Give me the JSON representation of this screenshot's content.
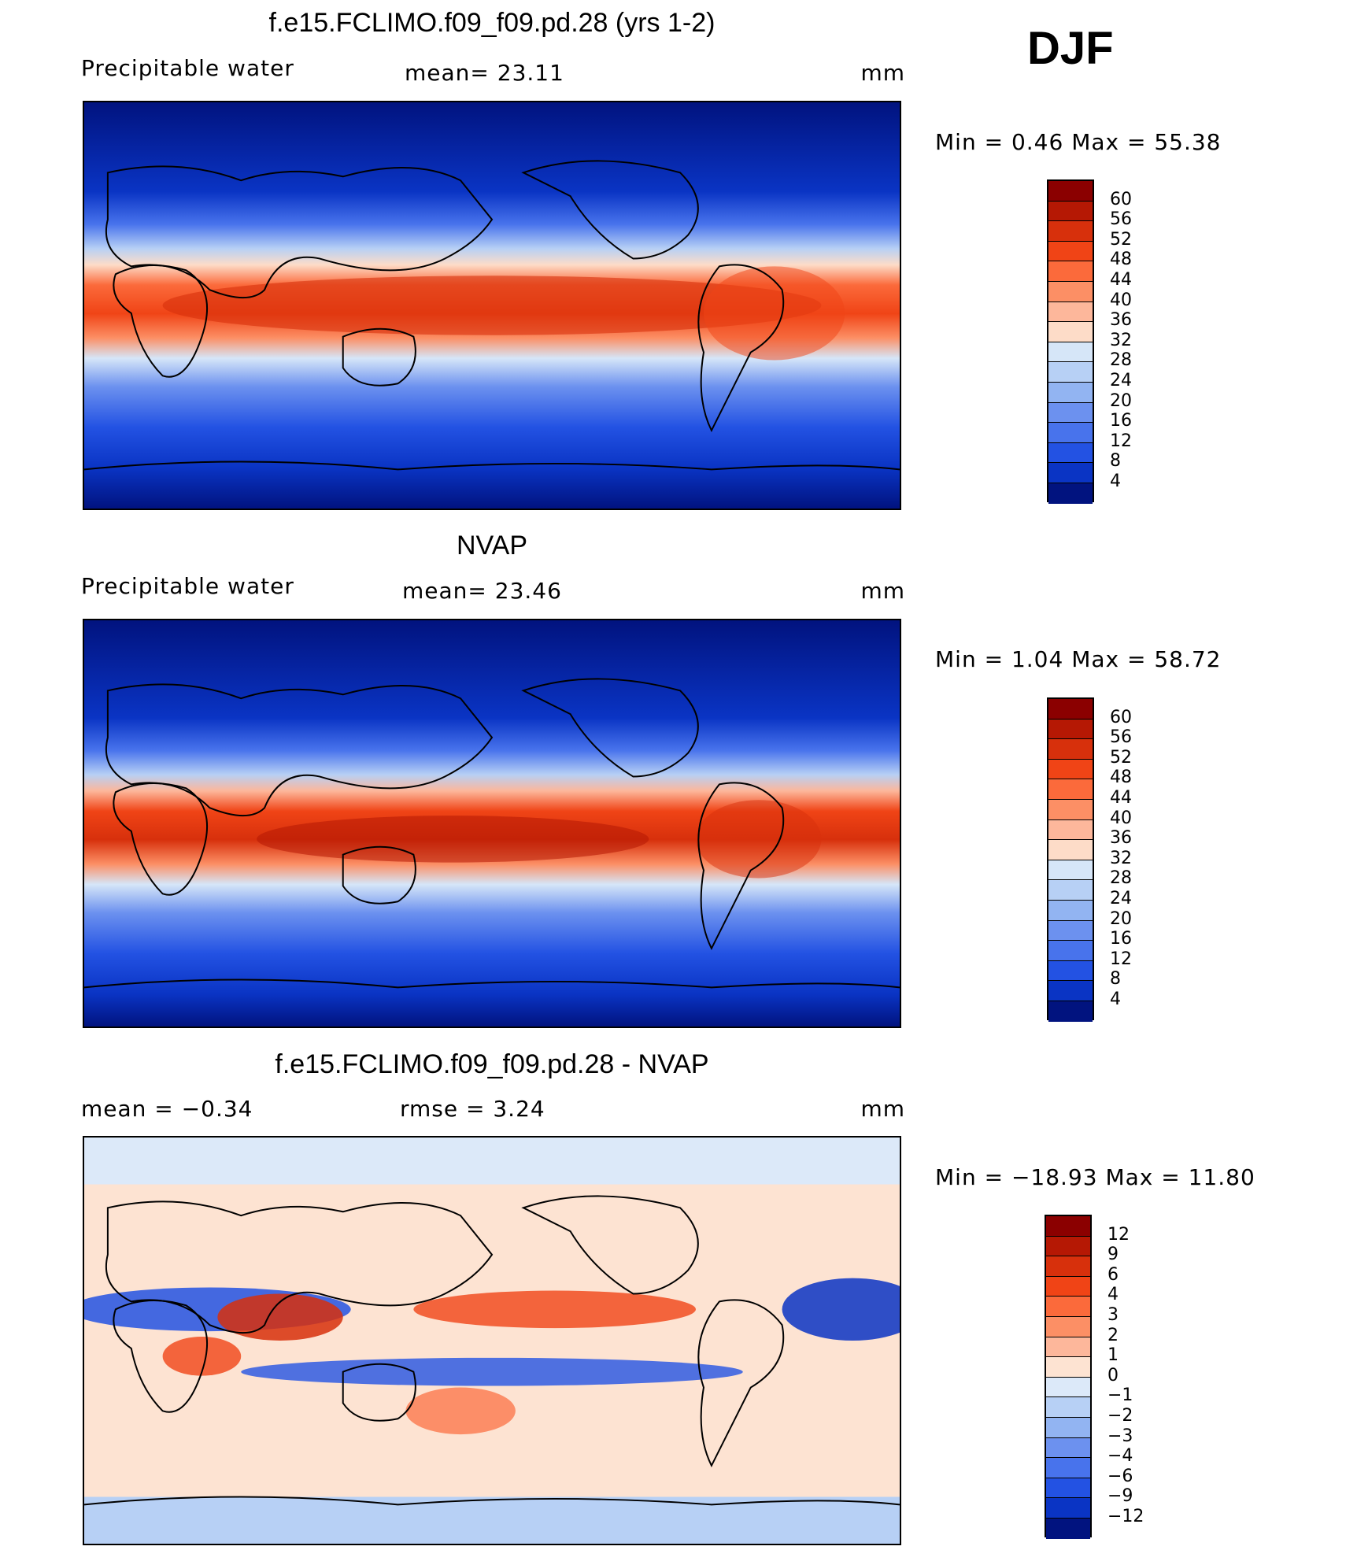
{
  "season": "DJF",
  "panels": [
    {
      "title": "f.e15.FCLIMO.f09_f09.pd.28 (yrs 1-2)",
      "left_label": "Precipitable  water",
      "center_label": "mean=   23.11",
      "units": "mm",
      "minmax": "Min  =    0.46  Max  =    55.38",
      "colorbar": {
        "ticks": [
          "60",
          "56",
          "52",
          "48",
          "44",
          "40",
          "36",
          "32",
          "28",
          "24",
          "20",
          "16",
          "12",
          "8",
          "4"
        ],
        "colors": [
          "#8b0000",
          "#b51804",
          "#d7300c",
          "#f04416",
          "#fb6a3b",
          "#fc8f65",
          "#fdb79b",
          "#fddcc8",
          "#d6e6f8",
          "#b7d0f5",
          "#92b4f2",
          "#6c91ef",
          "#4873ec",
          "#2352e3",
          "#0a34c4",
          "#01137f"
        ]
      }
    },
    {
      "title": "NVAP",
      "left_label": "Precipitable  water",
      "center_label": "mean=   23.46",
      "units": "mm",
      "minmax": "Min  =    1.04  Max  =    58.72",
      "colorbar": {
        "ticks": [
          "60",
          "56",
          "52",
          "48",
          "44",
          "40",
          "36",
          "32",
          "28",
          "24",
          "20",
          "16",
          "12",
          "8",
          "4"
        ],
        "colors": [
          "#8b0000",
          "#b51804",
          "#d7300c",
          "#f04416",
          "#fb6a3b",
          "#fc8f65",
          "#fdb79b",
          "#fddcc8",
          "#d6e6f8",
          "#b7d0f5",
          "#92b4f2",
          "#6c91ef",
          "#4873ec",
          "#2352e3",
          "#0a34c4",
          "#01137f"
        ]
      }
    },
    {
      "title": "f.e15.FCLIMO.f09_f09.pd.28 - NVAP",
      "left_label": "mean  =    −0.34",
      "center_label": "rmse  =     3.24",
      "units": "mm",
      "minmax": "Min  = −18.93  Max  =    11.80",
      "colorbar": {
        "ticks": [
          "12",
          "9",
          "6",
          "4",
          "3",
          "2",
          "1",
          "0",
          "−1",
          "−2",
          "−3",
          "−4",
          "−6",
          "−9",
          "−12"
        ],
        "colors": [
          "#8b0000",
          "#b51804",
          "#d7300c",
          "#f04416",
          "#fb6a3b",
          "#fc8f65",
          "#fdb79b",
          "#fde3d2",
          "#dce9f9",
          "#b7d0f5",
          "#92b4f2",
          "#6c91ef",
          "#4873ec",
          "#2352e3",
          "#0a34c4",
          "#01137f"
        ]
      }
    }
  ]
}
